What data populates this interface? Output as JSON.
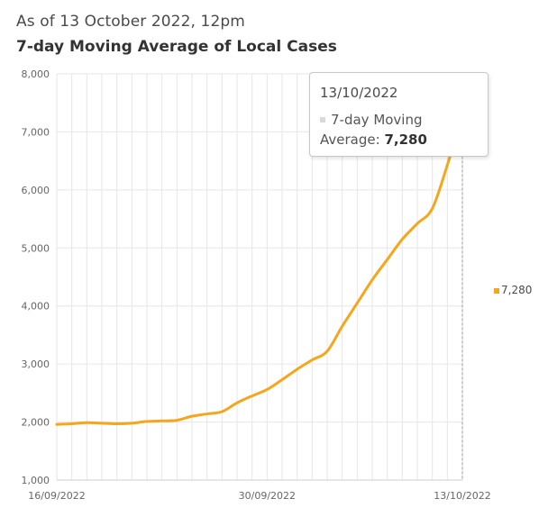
{
  "header": {
    "as_of": "As of 13 October 2022, 12pm",
    "title": "7-day Moving Average of Local Cases"
  },
  "tooltip": {
    "date": "13/10/2022",
    "series_label": "7-day Moving Average:",
    "value": "7,280"
  },
  "legend": {
    "value": "7,280"
  },
  "colors": {
    "line": "#f5a61c",
    "grid": "#e6e6e6",
    "axis_text": "#666666"
  },
  "chart_data": {
    "type": "line",
    "title": "7-day Moving Average of Local Cases",
    "xlabel": "",
    "ylabel": "",
    "ylim": [
      1000,
      8000
    ],
    "yticks": [
      "1,000",
      "2,000",
      "3,000",
      "4,000",
      "5,000",
      "6,000",
      "7,000",
      "8,000"
    ],
    "xtick_labels": [
      "16/09/2022",
      "30/09/2022",
      "13/10/2022"
    ],
    "grid": true,
    "x": [
      "16/09/2022",
      "17/09/2022",
      "18/09/2022",
      "19/09/2022",
      "20/09/2022",
      "21/09/2022",
      "22/09/2022",
      "23/09/2022",
      "24/09/2022",
      "25/09/2022",
      "26/09/2022",
      "27/09/2022",
      "28/09/2022",
      "29/09/2022",
      "30/09/2022",
      "01/10/2022",
      "02/10/2022",
      "03/10/2022",
      "04/10/2022",
      "05/10/2022",
      "06/10/2022",
      "07/10/2022",
      "08/10/2022",
      "09/10/2022",
      "10/10/2022",
      "11/10/2022",
      "12/10/2022",
      "13/10/2022"
    ],
    "series": [
      {
        "name": "7-day Moving Average",
        "values": [
          1960,
          1970,
          1990,
          1980,
          1970,
          1980,
          2010,
          2020,
          2030,
          2100,
          2140,
          2180,
          2330,
          2450,
          2560,
          2730,
          2910,
          3070,
          3220,
          3650,
          4050,
          4450,
          4800,
          5150,
          5420,
          5680,
          6430,
          7280
        ]
      }
    ]
  }
}
